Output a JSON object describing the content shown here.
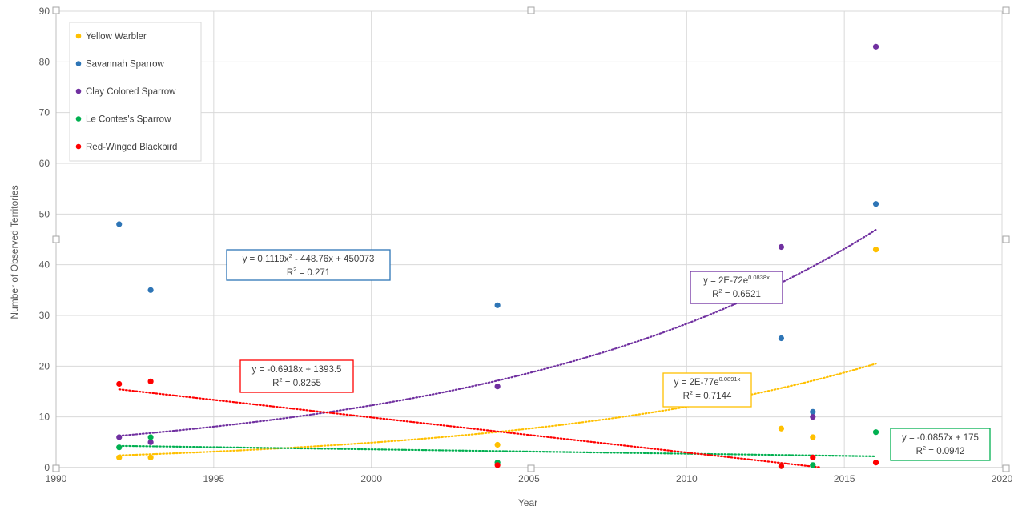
{
  "chart_data": {
    "type": "scatter",
    "title": "",
    "xlabel": "Year",
    "ylabel": "Number of Observed Territories",
    "xlim": [
      1990,
      2020
    ],
    "ylim": [
      0,
      90
    ],
    "x_ticks": [
      1990,
      1995,
      2000,
      2005,
      2010,
      2015,
      2020
    ],
    "y_ticks": [
      0,
      10,
      20,
      30,
      40,
      50,
      60,
      70,
      80,
      90
    ],
    "grid": true,
    "legend_position": "top-left",
    "series": [
      {
        "name": "Yellow Warbler",
        "color": "#FFC000",
        "points": [
          [
            1992,
            2
          ],
          [
            1993,
            2
          ],
          [
            2004,
            4.5
          ],
          [
            2013,
            7.7
          ],
          [
            2014,
            6
          ],
          [
            2016,
            43
          ]
        ],
        "trendline": {
          "type": "exponential",
          "a": 2e-77,
          "b": 0.0891,
          "from": 1992,
          "to": 2016
        },
        "equation": {
          "prefix": "y = 2E-77e",
          "sup": "0.0891x",
          "r2_prefix": "R",
          "r2_sup": "2",
          "r2_value": " = 0.7144"
        }
      },
      {
        "name": "Savannah Sparrow",
        "color": "#2E75B6",
        "points": [
          [
            1992,
            48
          ],
          [
            1993,
            35
          ],
          [
            2004,
            32
          ],
          [
            2013,
            25.5
          ],
          [
            2014,
            11
          ],
          [
            2016,
            52
          ]
        ],
        "trendline": {
          "type": "polynomial",
          "coef": [
            0.1119,
            -448.76,
            450073
          ],
          "from": 1992,
          "to": 2016
        },
        "equation": {
          "prefix": "y = 0.1119x",
          "sup": "2",
          "suffix": " - 448.76x + 450073",
          "r2_prefix": "R",
          "r2_sup": "2",
          "r2_value": " = 0.271"
        }
      },
      {
        "name": "Clay Colored Sparrow",
        "color": "#7030A0",
        "points": [
          [
            1992,
            6
          ],
          [
            1993,
            5
          ],
          [
            2004,
            16
          ],
          [
            2013,
            43.5
          ],
          [
            2014,
            10
          ],
          [
            2016,
            83
          ]
        ],
        "trendline": {
          "type": "exponential",
          "a": 2e-72,
          "b": 0.0838,
          "from": 1992,
          "to": 2016
        },
        "equation": {
          "prefix": "y = 2E-72e",
          "sup": "0.0838x",
          "r2_prefix": "R",
          "r2_sup": "2",
          "r2_value": " = 0.6521"
        }
      },
      {
        "name": "Le Contes's Sparrow",
        "color": "#00B050",
        "points": [
          [
            1992,
            4
          ],
          [
            1993,
            6
          ],
          [
            2004,
            1
          ],
          [
            2013,
            0.3
          ],
          [
            2014,
            0.5
          ],
          [
            2016,
            7
          ]
        ],
        "trendline": {
          "type": "linear",
          "m": -0.0857,
          "c": 175,
          "from": 1992,
          "to": 2016
        },
        "equation": {
          "prefix": "y = -0.0857x + 175",
          "r2_prefix": "R",
          "r2_sup": "2",
          "r2_value": " = 0.0942"
        }
      },
      {
        "name": "Red-Winged Blackbird",
        "color": "#FF0000",
        "points": [
          [
            1992,
            16.5
          ],
          [
            1993,
            17
          ],
          [
            2004,
            0.5
          ],
          [
            2013,
            0.3
          ],
          [
            2014,
            2
          ],
          [
            2016,
            1
          ]
        ],
        "trendline": {
          "type": "linear",
          "m": -0.6918,
          "c": 1393.5,
          "from": 1992,
          "to": 2016
        },
        "equation": {
          "prefix": "y = -0.6918x + 1393.5",
          "r2_prefix": "R",
          "r2_sup": "2",
          "r2_value": " = 0.8255"
        }
      }
    ]
  }
}
